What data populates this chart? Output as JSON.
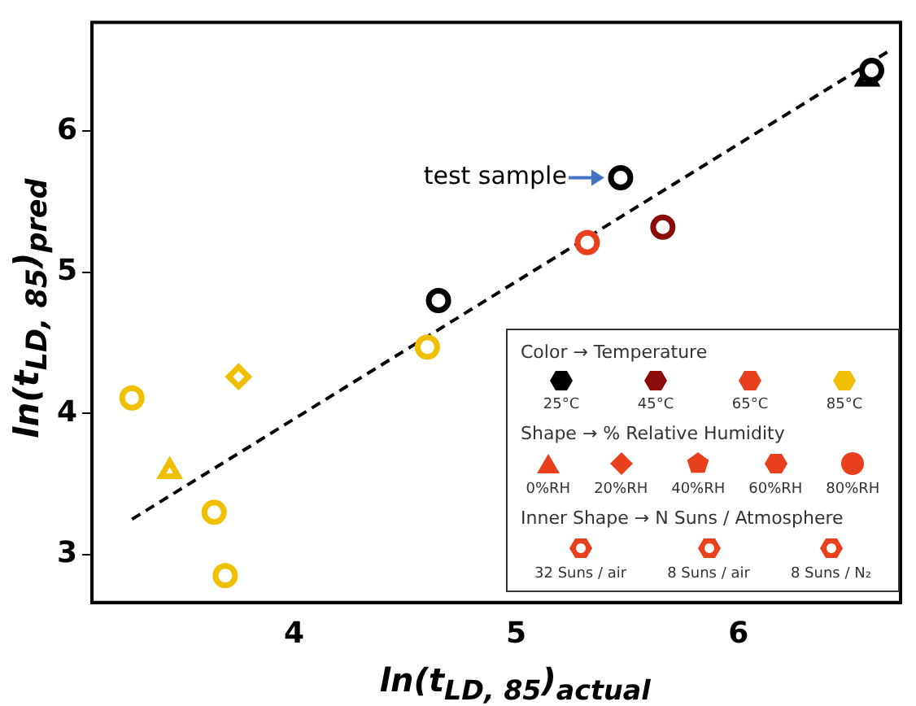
{
  "chart_data": {
    "type": "scatter",
    "xlabel": "ln(t$_{LD, 85}$)$_{actual}$",
    "ylabel": "ln(t$_{LD, 85}$)$_{pred}$",
    "xlim": [
      3.09,
      6.73
    ],
    "ylim": [
      2.66,
      6.77
    ],
    "xticks": [
      4,
      5,
      6
    ],
    "yticks": [
      3,
      4,
      5,
      6
    ],
    "grid": false,
    "legend": "bottom right",
    "legend_title": "Color → Temperature",
    "series": [
      {
        "name": "25°C",
        "color": "#000000",
        "marker": "circle",
        "x": [
          4.65,
          5.47,
          6.6
        ],
        "values": [
          4.8,
          5.67,
          6.43
        ]
      },
      {
        "name": "45°C",
        "color": "#8b0a0a",
        "marker": "circle",
        "x": [
          5.66
        ],
        "values": [
          5.32
        ]
      },
      {
        "name": "65°C",
        "color": "#e8401c",
        "marker": "circle",
        "x": [
          5.32
        ],
        "values": [
          5.21
        ]
      },
      {
        "name": "85°C",
        "color": "#f0c000",
        "marker": "circle",
        "x": [
          3.27,
          3.64,
          3.69,
          4.6
        ],
        "values": [
          4.11,
          3.3,
          2.85,
          4.47
        ]
      },
      {
        "color": "#000000",
        "marker": "triangle",
        "x": [
          6.58
        ],
        "values": [
          6.37
        ]
      },
      {
        "color": "#f0c000",
        "marker": "triangle",
        "x": [
          3.44
        ],
        "values": [
          3.59
        ]
      },
      {
        "color": "#f0c000",
        "marker": "diamond",
        "x": [
          3.75
        ],
        "values": [
          4.26
        ]
      },
      {
        "type": "line",
        "color": "#000000",
        "marker": "none",
        "line_style": "dashed",
        "x": [
          3.27,
          6.67
        ],
        "values": [
          3.25,
          6.56
        ]
      }
    ],
    "annotations": [
      {
        "text": "test sample",
        "x": 5.47,
        "y": 5.67
      },
      "Shape → % Relative Humidity",
      "0%RH",
      "20%RH",
      "40%RH",
      "60%RH",
      "80%RH",
      "Inner Shape → N Suns / Atmosphere",
      "32 Suns / air",
      "8 Suns / air",
      "8 Suns / N₂"
    ]
  }
}
